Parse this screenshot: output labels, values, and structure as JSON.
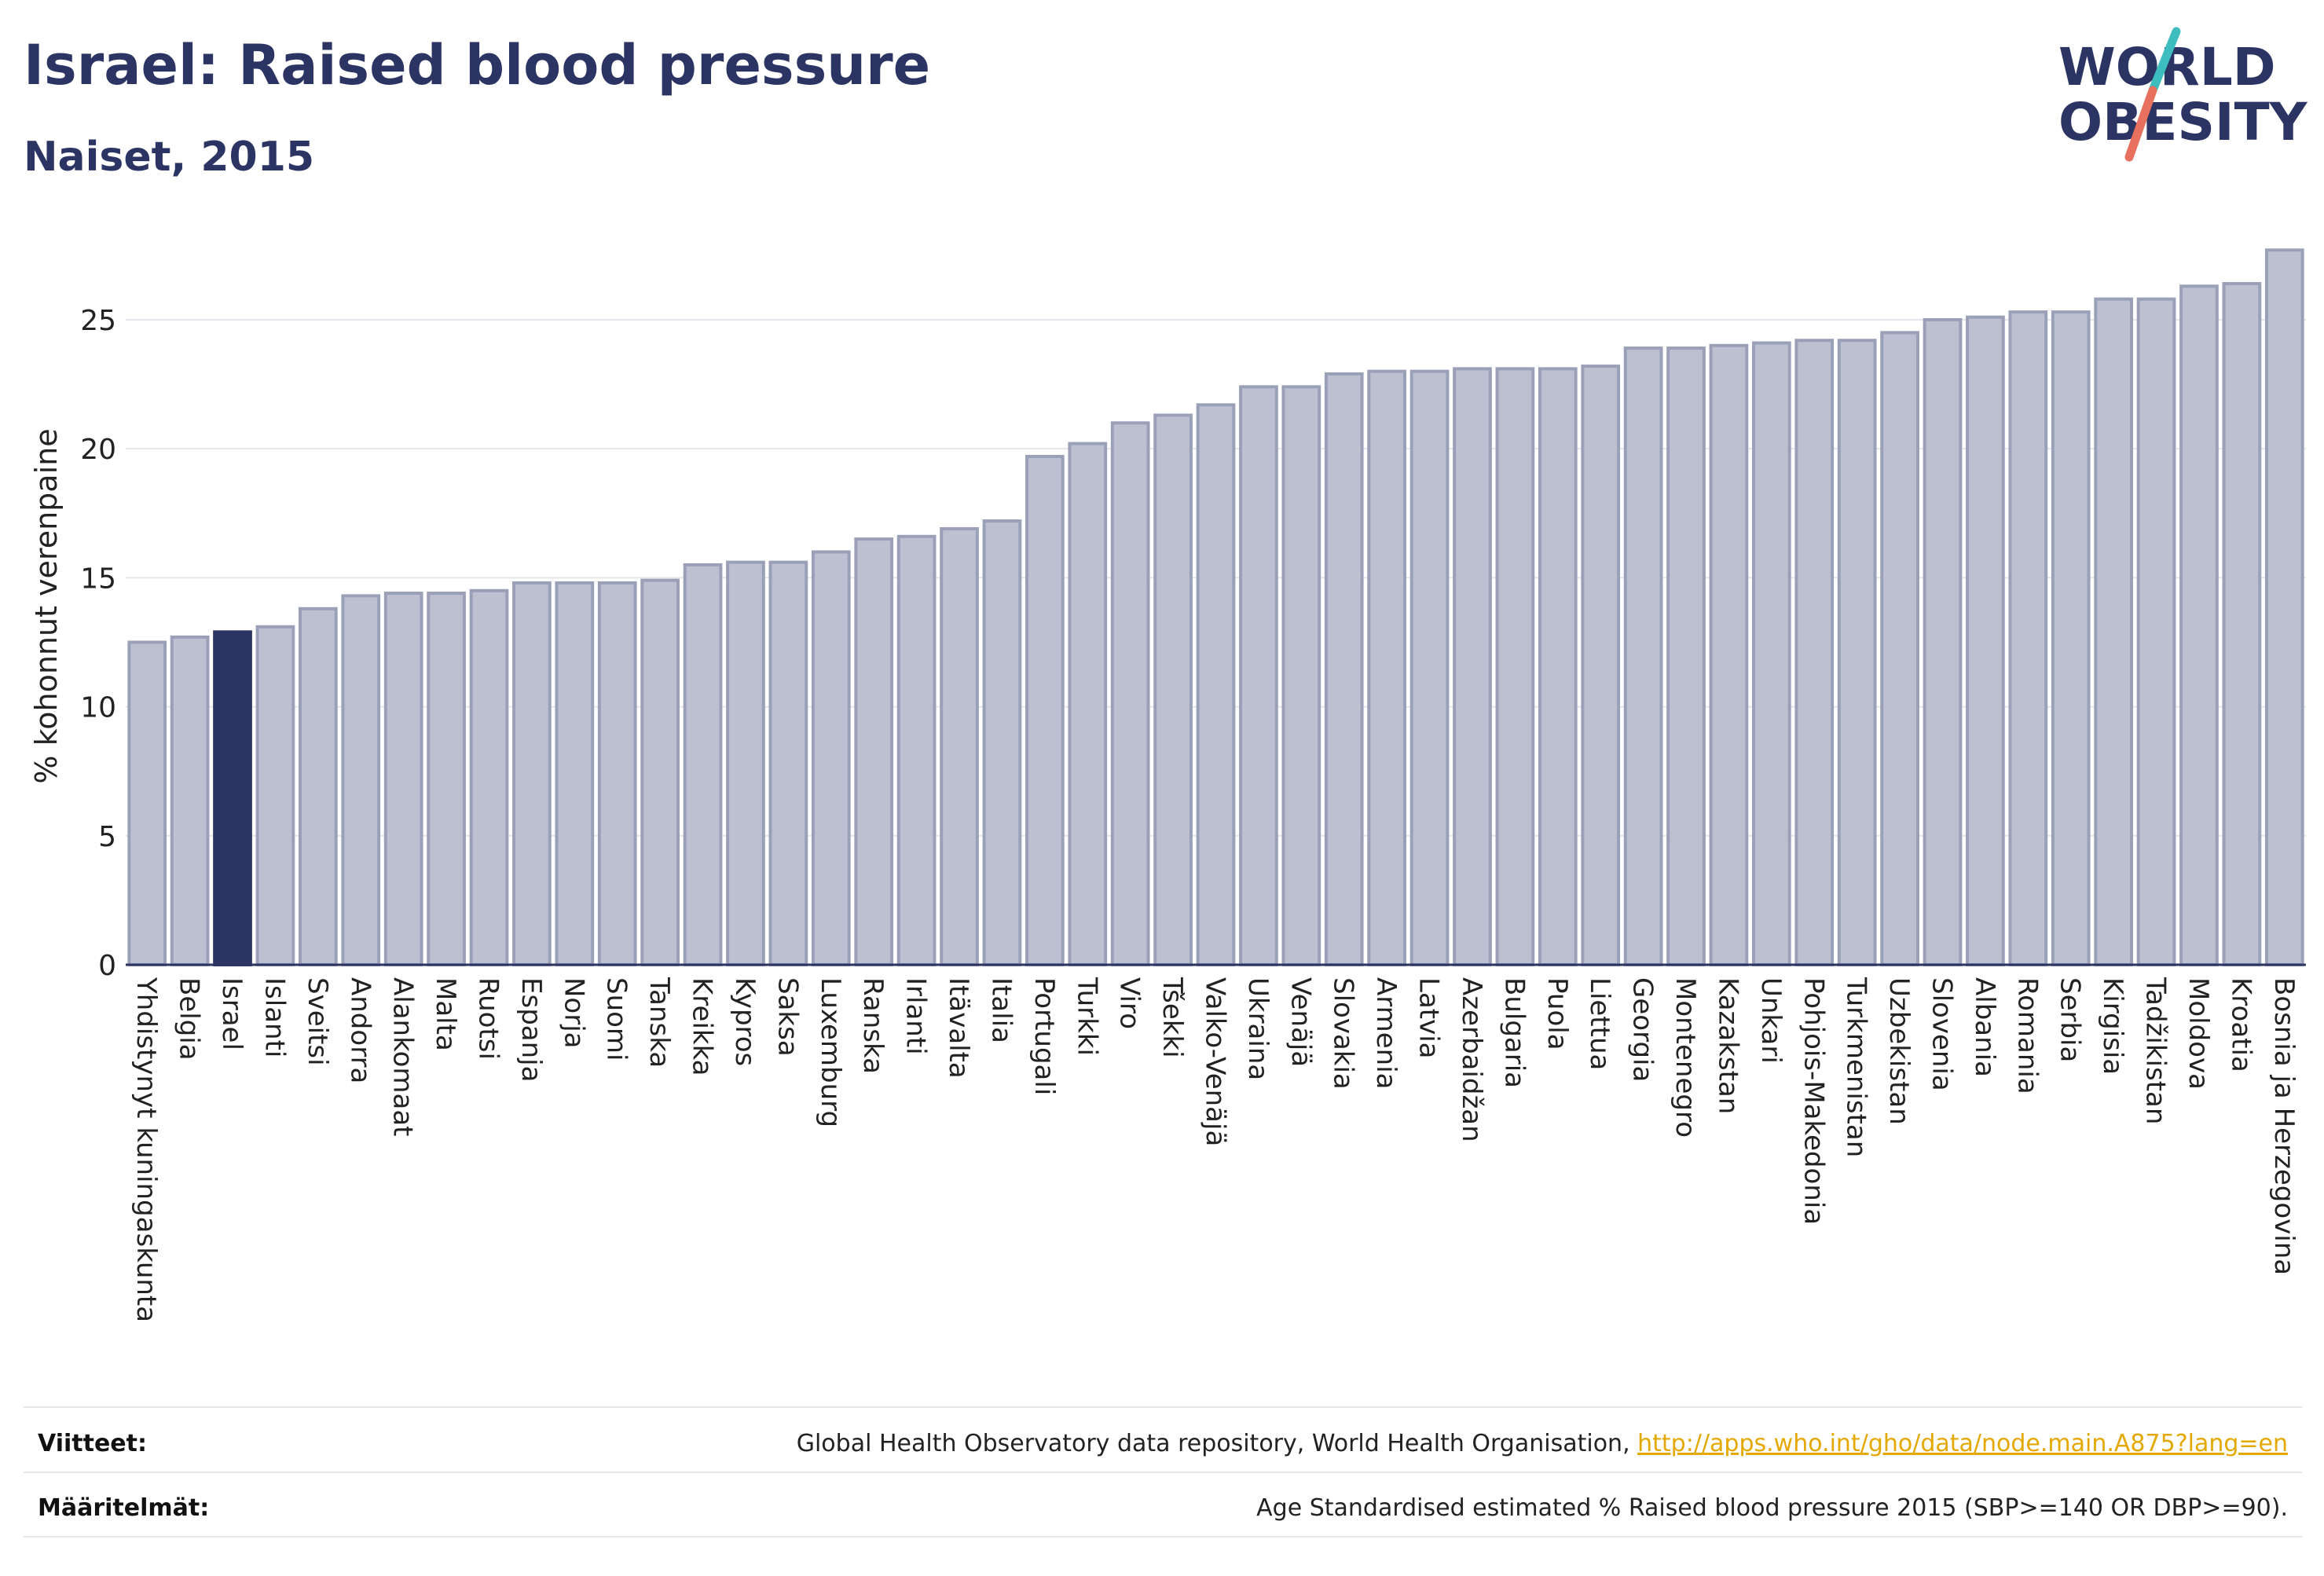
{
  "header": {
    "title": "Israel: Raised blood pressure",
    "subtitle": "Naiset, 2015",
    "logo_line1": "WORLD",
    "logo_line2": "OBESITY"
  },
  "colors": {
    "title": "#2b3462",
    "bar_default": "#bcc0d0",
    "bar_default_stroke": "#9aa0b8",
    "bar_highlight": "#2b3462",
    "logo_teal": "#3dbdbd",
    "logo_coral": "#e8705e",
    "link": "#e5a800"
  },
  "chart_data": {
    "type": "bar",
    "title": "Israel: Raised blood pressure",
    "subtitle": "Naiset, 2015",
    "xlabel": "",
    "ylabel": "% kohonnut verenpaine",
    "ylim": [
      0,
      27.8
    ],
    "yticks": [
      0,
      5,
      10,
      15,
      20,
      25
    ],
    "grid": true,
    "highlight": "Israel",
    "categories": [
      "Yhdistynyt kuningaskunta",
      "Belgia",
      "Israel",
      "Islanti",
      "Sveitsi",
      "Andorra",
      "Alankomaat",
      "Malta",
      "Ruotsi",
      "Espanja",
      "Norja",
      "Suomi",
      "Tanska",
      "Kreikka",
      "Kypros",
      "Saksa",
      "Luxemburg",
      "Ranska",
      "Irlanti",
      "Itävalta",
      "Italia",
      "Portugali",
      "Turkki",
      "Viro",
      "Tšekki",
      "Valko-Venäjä",
      "Ukraina",
      "Venäjä",
      "Slovakia",
      "Armenia",
      "Latvia",
      "Azerbaidžan",
      "Bulgaria",
      "Puola",
      "Liettua",
      "Georgia",
      "Montenegro",
      "Kazakstan",
      "Unkari",
      "Pohjois-Makedonia",
      "Turkmenistan",
      "Uzbekistan",
      "Slovenia",
      "Albania",
      "Romania",
      "Serbia",
      "Kirgisia",
      "Tadžikistan",
      "Moldova",
      "Kroatia",
      "Bosnia ja Herzegovina"
    ],
    "values": [
      12.5,
      12.7,
      12.9,
      13.1,
      13.8,
      14.3,
      14.4,
      14.4,
      14.5,
      14.8,
      14.8,
      14.8,
      14.9,
      15.5,
      15.6,
      15.6,
      16.0,
      16.5,
      16.6,
      16.9,
      17.2,
      19.7,
      20.2,
      21.0,
      21.3,
      21.7,
      22.4,
      22.4,
      22.9,
      23.0,
      23.0,
      23.1,
      23.1,
      23.1,
      23.2,
      23.9,
      23.9,
      24.0,
      24.1,
      24.2,
      24.2,
      24.5,
      25.0,
      25.1,
      25.3,
      25.3,
      25.8,
      25.8,
      26.3,
      26.4,
      27.7
    ]
  },
  "footer": {
    "sources_label": "Viitteet:",
    "sources_text": "Global Health Observatory data repository, World Health Organisation, ",
    "sources_link": "http://apps.who.int/gho/data/node.main.A875?lang=en",
    "definitions_label": "Määritelmät:",
    "definitions_text": "Age Standardised estimated % Raised blood pressure 2015 (SBP>=140 OR DBP>=90)."
  }
}
